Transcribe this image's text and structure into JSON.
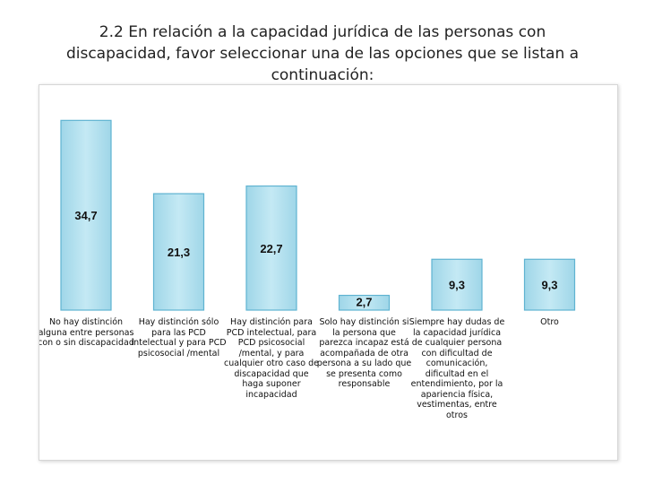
{
  "title": "2.2 En relación a  la capacidad jurídica de las personas con\ndiscapacidad, favor seleccionar una de las opciones que se listan a\ncontinuación:",
  "chart_data": {
    "type": "bar",
    "title": "",
    "xlabel": "",
    "ylabel": "",
    "ylim": [
      0,
      40
    ],
    "grid": false,
    "legend": "none",
    "categories": [
      "No hay distinción alguna entre personas con o sin discapacidad",
      "Hay distinción sólo para las PCD intelectual y para PCD psicosocial /mental",
      "Hay distinción para PCD intelectual, para PCD psicosocial /mental, y para cualquier otro caso de discapacidad que haga suponer incapacidad",
      "Solo hay distinción si la persona que parezca incapaz está acompañada de otra persona a su lado que se presenta como responsable",
      "Siempre hay dudas de la capacidad jurídica de cualquier persona con dificultad de comunicación, dificultad en el entendimiento, por la apariencia física, vestimentas, entre otros",
      "Otro"
    ],
    "values": [
      34.7,
      21.3,
      22.7,
      2.7,
      9.3,
      9.3
    ],
    "data_labels": [
      "34,7",
      "21,3",
      "22,7",
      "2,7",
      "9,3",
      "9,3"
    ],
    "colors": {
      "bar_fill": "#a9dcec",
      "bar_stroke": "#5fb3d1",
      "label": "#111111"
    }
  }
}
